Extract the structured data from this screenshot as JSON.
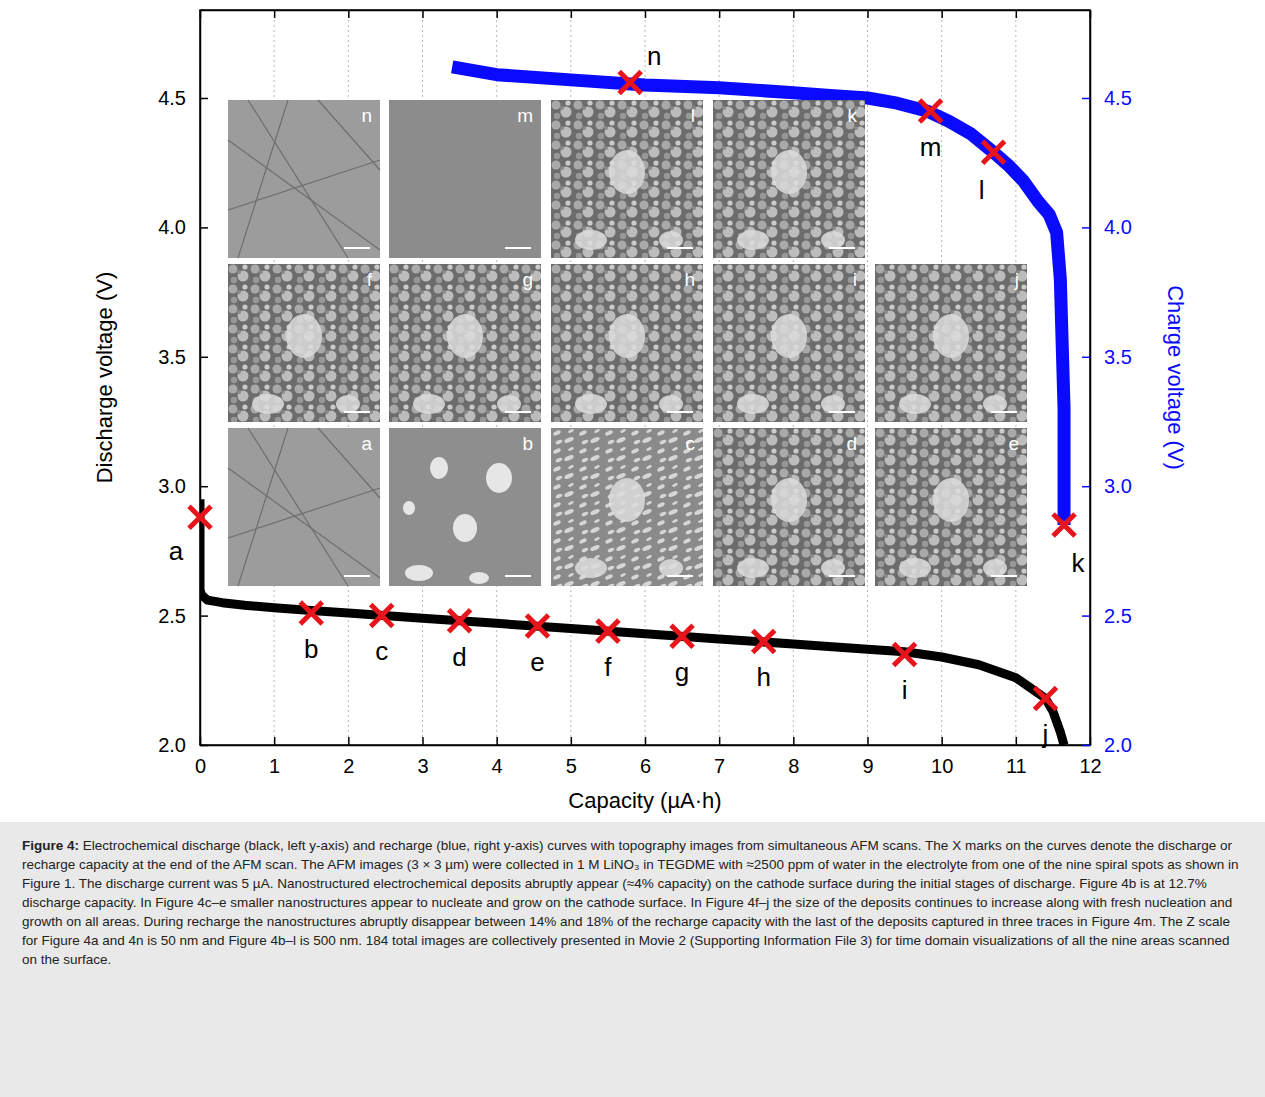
{
  "chart_data": {
    "type": "line",
    "x_label": "Capacity (µA·h)",
    "y_label": "Discharge voltage (V)",
    "y2_label": "Charge voltage (V)",
    "xlim": [
      0,
      12
    ],
    "xticks": [
      0,
      1,
      2,
      3,
      4,
      5,
      6,
      7,
      8,
      9,
      10,
      11,
      12
    ],
    "ylim": [
      2.0,
      4.84
    ],
    "yticks": [
      {
        "value": 2,
        "label": "2.0"
      },
      2.5,
      {
        "value": 3,
        "label": "3.0"
      },
      3.5,
      {
        "value": 4,
        "label": "4.0"
      },
      4.5
    ],
    "y2lim": [
      2.0,
      4.84
    ],
    "y2ticks": [
      {
        "value": 2,
        "label": "2.0"
      },
      2.5,
      {
        "value": 3,
        "label": "3.0"
      },
      3.5,
      {
        "value": 4,
        "label": "4.0"
      },
      4.5
    ],
    "grid": "x",
    "series": [
      {
        "type": "line",
        "color": "#000000",
        "x": [
          0,
          0,
          0.02,
          0.1,
          0.3,
          0.6,
          1,
          1.5,
          2,
          3,
          4,
          5,
          6,
          7,
          8,
          9,
          9.5,
          10,
          10.5,
          11,
          11.2,
          11.4,
          11.5,
          11.6,
          11.65
        ],
        "values": [
          2.95,
          2.6,
          2.58,
          2.56,
          2.55,
          2.54,
          2.53,
          2.52,
          2.51,
          2.49,
          2.47,
          2.45,
          2.43,
          2.41,
          2.39,
          2.37,
          2.36,
          2.34,
          2.31,
          2.26,
          2.22,
          2.18,
          2.13,
          2.05,
          2.0
        ]
      },
      {
        "type": "line",
        "color": "#0a0aff",
        "axis": "y2",
        "x": [
          11.65,
          11.65,
          11.63,
          11.6,
          11.55,
          11.45,
          11.3,
          11.1,
          10.9,
          10.7,
          10.4,
          10.1,
          9.8,
          9.4,
          9.0,
          8.5,
          8.0,
          7.0,
          6.0,
          5.0,
          4.0,
          3.4
        ],
        "values": [
          2.85,
          3.3,
          3.5,
          3.8,
          3.98,
          4.05,
          4.1,
          4.18,
          4.24,
          4.29,
          4.36,
          4.41,
          4.45,
          4.48,
          4.5,
          4.51,
          4.52,
          4.54,
          4.55,
          4.57,
          4.59,
          4.62
        ]
      },
      {
        "type": "scatter",
        "marker": "x",
        "color": "#e8141c",
        "x": [
          0,
          1.5,
          2.45,
          3.5,
          4.55,
          5.5,
          6.5,
          7.6,
          9.5,
          11.4
        ],
        "values": [
          2.88,
          2.51,
          2.5,
          2.48,
          2.46,
          2.44,
          2.42,
          2.4,
          2.35,
          2.18
        ],
        "point_labels": [
          "a",
          "b",
          "c",
          "d",
          "e",
          "f",
          "g",
          "h",
          "i",
          "j"
        ]
      },
      {
        "type": "scatter",
        "marker": "x",
        "color": "#e8141c",
        "axis": "y2",
        "x": [
          11.65,
          10.7,
          9.85,
          5.8
        ],
        "values": [
          2.85,
          4.29,
          4.45,
          4.56
        ],
        "point_labels": [
          "k",
          "l",
          "m",
          "n"
        ]
      }
    ]
  },
  "insets": {
    "rows": [
      [
        "n",
        "m",
        "l",
        "k"
      ],
      [
        "f",
        "g",
        "h",
        "i",
        "j"
      ],
      [
        "a",
        "b",
        "c",
        "d",
        "e"
      ]
    ]
  },
  "caption": {
    "label": "Figure 4:",
    "text": "Electrochemical discharge (black, left y-axis) and recharge (blue, right y-axis) curves with topography images from simultaneous AFM scans. The X marks on the curves denote the discharge or recharge capacity at the end of the AFM scan. The AFM images (3 × 3 µm) were collected in 1 M LiNO₃ in TEGDME with ≈2500 ppm of water in the electrolyte from one of the nine spiral spots as shown in Figure 1. The discharge current was 5 µA. Nanostructured electrochemical deposits abruptly appear (≈4% capacity) on the cathode surface during the initial stages of discharge. Figure 4b is at 12.7% discharge capacity. In Figure 4c–e smaller nanostructures appear to nucleate and grow on the cathode surface. In Figure 4f–j the size of the deposits continues to increase along with fresh nucleation and growth on all areas. During recharge the nanostructures abruptly disappear between 14% and 18% of the recharge capacity with the last of the deposits captured in three traces in Figure 4m. The Z scale for Figure 4a and 4n is 50 nm and Figure 4b–l is 500 nm. 184 total images are collectively presented in Movie 2 (Supporting Information File 3) for time domain visualizations of all the nine areas scanned on the surface."
  }
}
